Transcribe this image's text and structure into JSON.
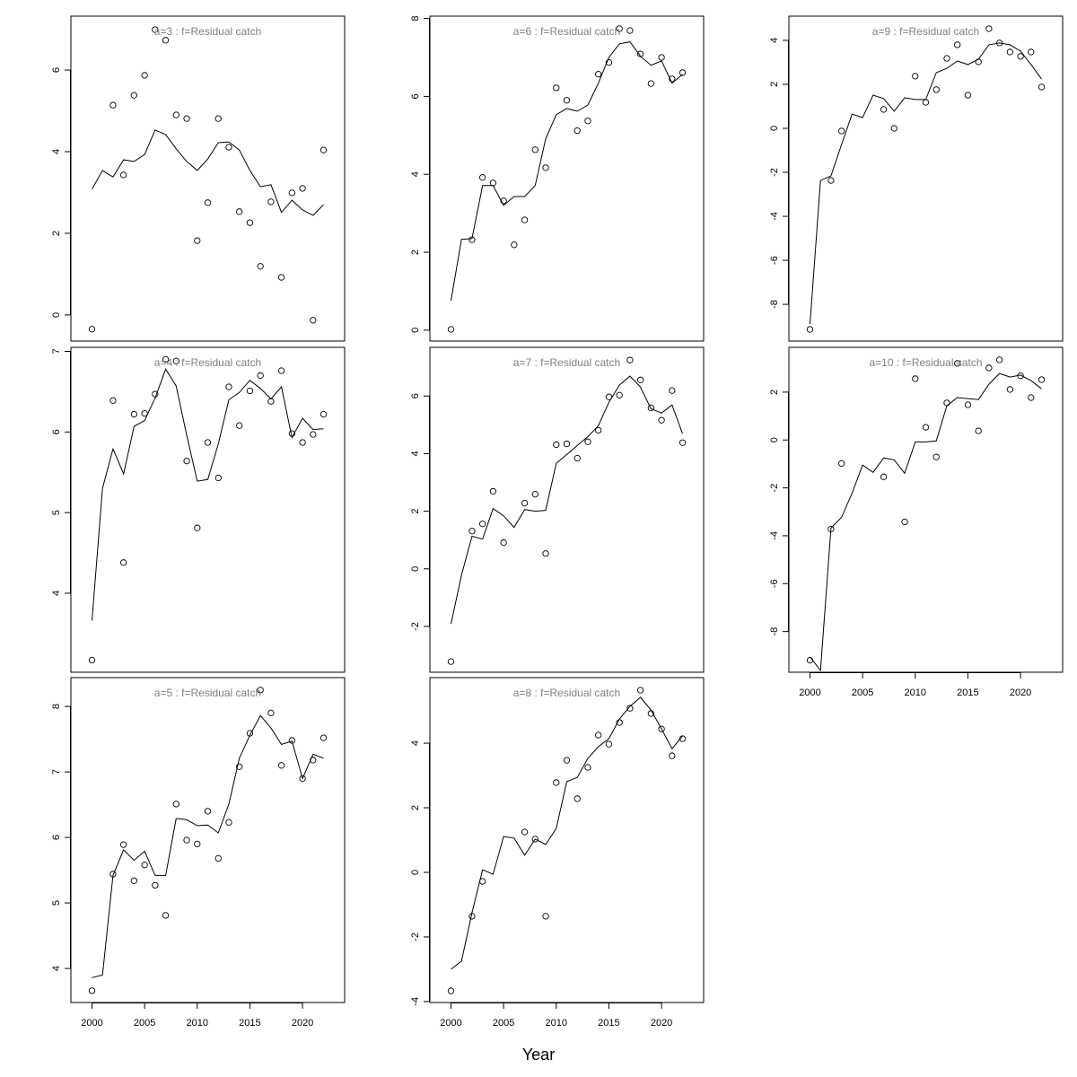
{
  "chart_data": {
    "type": "scatter",
    "xlabel": "Year",
    "xlim": [
      1998,
      2024
    ],
    "xticks": [
      2000,
      2005,
      2010,
      2015,
      2020
    ],
    "line_years_start": 2000,
    "colors": {
      "title": "#808080",
      "ink": "#000000"
    },
    "panels": [
      {
        "title": "a=3  :  f=Residual catch",
        "col": 0,
        "row": 0,
        "ylim": [
          -0.64,
          7.32
        ],
        "yticks": [
          0,
          2,
          4,
          6
        ],
        "show_xticks": false,
        "points": [
          [
            2000,
            -0.35
          ],
          [
            2002,
            5.14
          ],
          [
            2003,
            3.43
          ],
          [
            2004,
            5.38
          ],
          [
            2005,
            5.87
          ],
          [
            2006,
            6.99
          ],
          [
            2007,
            6.73
          ],
          [
            2008,
            4.9
          ],
          [
            2009,
            4.81
          ],
          [
            2010,
            1.82
          ],
          [
            2011,
            2.75
          ],
          [
            2012,
            4.81
          ],
          [
            2013,
            4.11
          ],
          [
            2014,
            2.53
          ],
          [
            2015,
            2.26
          ],
          [
            2016,
            1.19
          ],
          [
            2017,
            2.77
          ],
          [
            2018,
            0.92
          ],
          [
            2019,
            2.99
          ],
          [
            2020,
            3.1
          ],
          [
            2021,
            -0.13
          ],
          [
            2022,
            4.04
          ]
        ],
        "line": [
          3.08,
          3.54,
          3.38,
          3.8,
          3.76,
          3.93,
          4.53,
          4.42,
          4.07,
          3.76,
          3.54,
          3.82,
          4.22,
          4.24,
          4.04,
          3.54,
          3.14,
          3.19,
          2.51,
          2.81,
          2.57,
          2.44,
          2.7
        ]
      },
      {
        "title": "a=4  :  f=Residual catch",
        "col": 0,
        "row": 1,
        "ylim": [
          3.02,
          7.05
        ],
        "yticks": [
          4,
          5,
          6,
          7
        ],
        "show_xticks": false,
        "points": [
          [
            2000,
            3.17
          ],
          [
            2002,
            6.39
          ],
          [
            2003,
            4.38
          ],
          [
            2004,
            6.22
          ],
          [
            2005,
            6.23
          ],
          [
            2006,
            6.47
          ],
          [
            2007,
            6.9
          ],
          [
            2008,
            6.88
          ],
          [
            2009,
            5.64
          ],
          [
            2010,
            4.81
          ],
          [
            2011,
            5.87
          ],
          [
            2012,
            5.43
          ],
          [
            2013,
            6.56
          ],
          [
            2014,
            6.08
          ],
          [
            2015,
            6.51
          ],
          [
            2016,
            6.7
          ],
          [
            2017,
            6.38
          ],
          [
            2018,
            6.76
          ],
          [
            2019,
            5.98
          ],
          [
            2020,
            5.87
          ],
          [
            2021,
            5.97
          ],
          [
            2022,
            6.22
          ]
        ],
        "line": [
          3.66,
          5.3,
          5.79,
          5.48,
          6.07,
          6.14,
          6.42,
          6.78,
          6.57,
          5.96,
          5.39,
          5.41,
          5.85,
          6.4,
          6.49,
          6.64,
          6.54,
          6.41,
          6.56,
          5.93,
          6.17,
          6.03,
          6.04
        ]
      },
      {
        "title": "a=5  :  f=Residual catch",
        "col": 0,
        "row": 2,
        "ylim": [
          3.48,
          8.44
        ],
        "yticks": [
          4,
          5,
          6,
          7,
          8
        ],
        "show_xticks": true,
        "points": [
          [
            2000,
            3.66
          ],
          [
            2002,
            5.44
          ],
          [
            2003,
            5.89
          ],
          [
            2004,
            5.34
          ],
          [
            2005,
            5.58
          ],
          [
            2006,
            5.27
          ],
          [
            2007,
            4.81
          ],
          [
            2008,
            6.51
          ],
          [
            2009,
            5.96
          ],
          [
            2010,
            5.9
          ],
          [
            2011,
            6.4
          ],
          [
            2012,
            5.68
          ],
          [
            2013,
            6.23
          ],
          [
            2014,
            7.08
          ],
          [
            2015,
            7.59
          ],
          [
            2016,
            8.25
          ],
          [
            2017,
            7.9
          ],
          [
            2018,
            7.1
          ],
          [
            2019,
            7.48
          ],
          [
            2020,
            6.9
          ],
          [
            2021,
            7.18
          ],
          [
            2022,
            7.52
          ]
        ],
        "line": [
          3.86,
          3.9,
          5.42,
          5.81,
          5.65,
          5.79,
          5.42,
          5.42,
          6.29,
          6.27,
          6.18,
          6.19,
          6.07,
          6.51,
          7.21,
          7.56,
          7.86,
          7.67,
          7.42,
          7.47,
          6.9,
          7.27,
          7.21
        ]
      },
      {
        "title": "a=6  :  f=Residual catch",
        "col": 1,
        "row": 0,
        "ylim": [
          -0.28,
          8.06
        ],
        "yticks": [
          0,
          2,
          4,
          6,
          8
        ],
        "show_xticks": false,
        "points": [
          [
            2000,
            0.02
          ],
          [
            2002,
            2.32
          ],
          [
            2003,
            3.92
          ],
          [
            2004,
            3.78
          ],
          [
            2005,
            3.32
          ],
          [
            2006,
            2.19
          ],
          [
            2007,
            2.83
          ],
          [
            2008,
            4.63
          ],
          [
            2009,
            4.17
          ],
          [
            2010,
            6.22
          ],
          [
            2011,
            5.9
          ],
          [
            2012,
            5.12
          ],
          [
            2013,
            5.37
          ],
          [
            2014,
            6.57
          ],
          [
            2015,
            6.87
          ],
          [
            2016,
            7.74
          ],
          [
            2017,
            7.69
          ],
          [
            2018,
            7.09
          ],
          [
            2019,
            6.33
          ],
          [
            2020,
            7.0
          ],
          [
            2021,
            6.45
          ],
          [
            2022,
            6.61
          ]
        ],
        "line": [
          0.76,
          2.33,
          2.35,
          3.71,
          3.71,
          3.2,
          3.43,
          3.43,
          3.71,
          4.91,
          5.53,
          5.69,
          5.62,
          5.78,
          6.34,
          7.0,
          7.35,
          7.4,
          7.03,
          6.8,
          6.91,
          6.34,
          6.57
        ]
      },
      {
        "title": "a=7  :  f=Residual catch",
        "col": 1,
        "row": 1,
        "ylim": [
          -3.59,
          7.69
        ],
        "yticks": [
          -2,
          0,
          2,
          4,
          6
        ],
        "show_xticks": false,
        "points": [
          [
            2000,
            -3.22
          ],
          [
            2002,
            1.31
          ],
          [
            2003,
            1.56
          ],
          [
            2004,
            2.69
          ],
          [
            2005,
            0.91
          ],
          [
            2007,
            2.28
          ],
          [
            2008,
            2.59
          ],
          [
            2009,
            0.53
          ],
          [
            2010,
            4.31
          ],
          [
            2011,
            4.34
          ],
          [
            2012,
            3.84
          ],
          [
            2013,
            4.41
          ],
          [
            2014,
            4.81
          ],
          [
            2015,
            5.97
          ],
          [
            2016,
            6.03
          ],
          [
            2017,
            7.25
          ],
          [
            2018,
            6.56
          ],
          [
            2019,
            5.59
          ],
          [
            2020,
            5.16
          ],
          [
            2021,
            6.19
          ],
          [
            2022,
            4.38
          ]
        ],
        "line": [
          -1.91,
          -0.22,
          1.13,
          1.03,
          2.09,
          1.84,
          1.44,
          2.06,
          2.0,
          2.03,
          3.66,
          3.97,
          4.28,
          4.59,
          4.97,
          5.78,
          6.38,
          6.69,
          6.31,
          5.56,
          5.41,
          5.69,
          4.69
        ]
      },
      {
        "title": "a=8  :  f=Residual catch",
        "col": 1,
        "row": 2,
        "ylim": [
          -4.03,
          6.03
        ],
        "yticks": [
          -4,
          -2,
          0,
          2,
          4
        ],
        "show_xticks": true,
        "points": [
          [
            2000,
            -3.67
          ],
          [
            2002,
            -1.36
          ],
          [
            2003,
            -0.28
          ],
          [
            2007,
            1.25
          ],
          [
            2008,
            1.03
          ],
          [
            2009,
            -1.36
          ],
          [
            2010,
            2.78
          ],
          [
            2011,
            3.47
          ],
          [
            2012,
            2.28
          ],
          [
            2013,
            3.25
          ],
          [
            2014,
            4.25
          ],
          [
            2015,
            3.97
          ],
          [
            2016,
            4.64
          ],
          [
            2017,
            5.08
          ],
          [
            2018,
            5.64
          ],
          [
            2019,
            4.92
          ],
          [
            2020,
            4.44
          ],
          [
            2021,
            3.61
          ],
          [
            2022,
            4.14
          ]
        ],
        "line": [
          -3.0,
          -2.75,
          -1.25,
          0.08,
          -0.06,
          1.11,
          1.06,
          0.53,
          1.03,
          0.86,
          1.36,
          2.81,
          2.94,
          3.53,
          3.89,
          4.14,
          4.75,
          5.14,
          5.42,
          5.03,
          4.44,
          3.83,
          4.22
        ]
      },
      {
        "title": "a=9  :  f=Residual catch",
        "col": 2,
        "row": 0,
        "ylim": [
          -9.67,
          5.1
        ],
        "yticks": [
          -8,
          -6,
          -4,
          -2,
          0,
          2,
          4
        ],
        "show_xticks": false,
        "points": [
          [
            2000,
            -9.14
          ],
          [
            2002,
            -2.37
          ],
          [
            2003,
            -0.12
          ],
          [
            2007,
            0.86
          ],
          [
            2008,
            0.0
          ],
          [
            2010,
            2.37
          ],
          [
            2011,
            1.18
          ],
          [
            2012,
            1.76
          ],
          [
            2013,
            3.18
          ],
          [
            2014,
            3.8
          ],
          [
            2015,
            1.51
          ],
          [
            2016,
            3.02
          ],
          [
            2017,
            4.53
          ],
          [
            2018,
            3.88
          ],
          [
            2019,
            3.47
          ],
          [
            2020,
            3.27
          ],
          [
            2021,
            3.47
          ],
          [
            2022,
            1.88
          ]
        ],
        "line": [
          -8.9,
          -2.37,
          -2.16,
          -0.73,
          0.65,
          0.49,
          1.51,
          1.35,
          0.78,
          1.39,
          1.31,
          1.31,
          2.53,
          2.73,
          3.06,
          2.9,
          3.14,
          3.8,
          3.88,
          3.8,
          3.51,
          2.9,
          2.24
        ]
      },
      {
        "title": "a=10  :  f=Residual catch",
        "col": 2,
        "row": 1,
        "ylim": [
          -9.7,
          3.87
        ],
        "yticks": [
          -8,
          -6,
          -4,
          -2,
          0,
          2
        ],
        "show_xticks": true,
        "points": [
          [
            2000,
            -9.2
          ],
          [
            2002,
            -3.72
          ],
          [
            2003,
            -0.98
          ],
          [
            2007,
            -1.54
          ],
          [
            2009,
            -3.42
          ],
          [
            2010,
            2.56
          ],
          [
            2011,
            0.53
          ],
          [
            2012,
            -0.71
          ],
          [
            2013,
            1.55
          ],
          [
            2014,
            3.2
          ],
          [
            2015,
            1.47
          ],
          [
            2016,
            0.38
          ],
          [
            2017,
            3.01
          ],
          [
            2018,
            3.35
          ],
          [
            2019,
            2.11
          ],
          [
            2020,
            2.68
          ],
          [
            2021,
            1.77
          ],
          [
            2022,
            2.52
          ]
        ],
        "line": [
          -9.06,
          -9.62,
          -3.68,
          -3.23,
          -2.22,
          -1.05,
          -1.35,
          -0.75,
          -0.83,
          -1.39,
          -0.08,
          -0.08,
          -0.04,
          1.43,
          1.77,
          1.73,
          1.69,
          2.33,
          2.78,
          2.63,
          2.71,
          2.48,
          2.14
        ]
      }
    ]
  }
}
